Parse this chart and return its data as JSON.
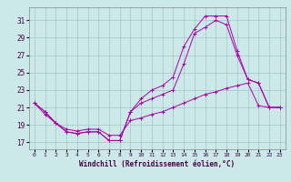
{
  "xlabel": "Windchill (Refroidissement éolien,°C)",
  "bg_color": "#cce8e8",
  "grid_color": "#aacccc",
  "line_color": "#aa00aa",
  "x_ticks": [
    0,
    1,
    2,
    3,
    4,
    5,
    6,
    7,
    8,
    9,
    10,
    11,
    12,
    13,
    14,
    15,
    16,
    17,
    18,
    19,
    20,
    21,
    22,
    23
  ],
  "y_ticks": [
    17,
    19,
    21,
    23,
    25,
    27,
    29,
    31
  ],
  "xlim": [
    -0.5,
    23.5
  ],
  "ylim": [
    16.2,
    32.5
  ],
  "line1_x": [
    0,
    1,
    2,
    3,
    4,
    5,
    6,
    7,
    8,
    9,
    10,
    11,
    12,
    13,
    14,
    15,
    16,
    17,
    18,
    19,
    20,
    21,
    22,
    23
  ],
  "line1_y": [
    21.5,
    20.5,
    19.2,
    18.2,
    18.0,
    18.2,
    18.2,
    17.2,
    17.2,
    20.5,
    22.0,
    23.0,
    23.5,
    24.5,
    28.0,
    30.0,
    31.5,
    31.5,
    31.5,
    27.5,
    24.2,
    23.8,
    21.0,
    21.0
  ],
  "line2_x": [
    0,
    1,
    2,
    3,
    4,
    5,
    6,
    7,
    8,
    9,
    10,
    11,
    12,
    13,
    14,
    15,
    16,
    17,
    18,
    19,
    20,
    21,
    22,
    23
  ],
  "line2_y": [
    21.5,
    20.5,
    19.2,
    18.2,
    18.0,
    18.2,
    18.2,
    17.2,
    17.2,
    20.5,
    21.5,
    22.0,
    22.5,
    23.0,
    26.0,
    29.5,
    30.2,
    31.0,
    30.5,
    27.0,
    24.2,
    23.8,
    21.0,
    21.0
  ],
  "line3_x": [
    0,
    1,
    2,
    3,
    4,
    5,
    6,
    7,
    8,
    9,
    10,
    11,
    12,
    13,
    14,
    15,
    16,
    17,
    18,
    19,
    20,
    21,
    22,
    23
  ],
  "line3_y": [
    21.5,
    20.2,
    19.2,
    18.5,
    18.3,
    18.5,
    18.5,
    17.8,
    17.8,
    19.5,
    19.8,
    20.2,
    20.5,
    21.0,
    21.5,
    22.0,
    22.5,
    22.8,
    23.2,
    23.5,
    23.8,
    21.2,
    21.0,
    21.0
  ]
}
